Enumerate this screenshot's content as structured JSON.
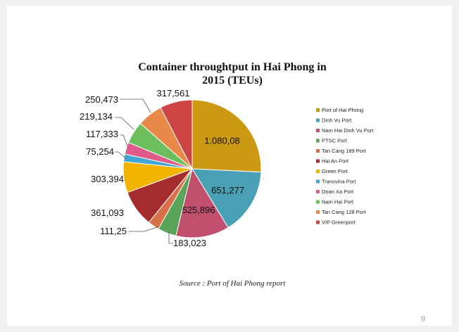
{
  "slide": {
    "page_number": "9"
  },
  "chart_data": {
    "type": "pie",
    "title": "Container throughtput in Hai Phong in 2015 (TEUs)",
    "title_lines": [
      "Container throughtput in Hai Phong in",
      "2015 (TEUs)"
    ],
    "source": "Source : Port of Hai Phong report",
    "legend_position": "right",
    "slices": [
      {
        "name": "Port of Hai Phong",
        "value": 1080.08,
        "label": "1.080,08",
        "color": "#cc9a12",
        "label_inside": true
      },
      {
        "name": "Dinh Vu Port",
        "value": 651.277,
        "label": "651,277",
        "color": "#4aa0b5",
        "label_inside": true
      },
      {
        "name": "Nam Hai Dinh Vu Port",
        "value": 525.896,
        "label": "525,896",
        "color": "#c0506e",
        "label_inside": true
      },
      {
        "name": "PTSC Port",
        "value": 183.023,
        "label": "183,023",
        "color": "#5aa35a",
        "label_inside": false
      },
      {
        "name": "Tan Cang 189 Port",
        "value": 111.25,
        "label": "111,25",
        "color": "#d9704a",
        "label_inside": false
      },
      {
        "name": "Hai An Port",
        "value": 361.093,
        "label": "361,093",
        "color": "#a62d2d",
        "label_inside": false
      },
      {
        "name": "Green Port",
        "value": 303.394,
        "label": "303,394",
        "color": "#f2b400",
        "label_inside": false
      },
      {
        "name": "Transvina Port",
        "value": 75.254,
        "label": "75,254",
        "color": "#3fa6d6",
        "label_inside": false
      },
      {
        "name": "Doan Xa Port",
        "value": 117.333,
        "label": "117,333",
        "color": "#e05a8a",
        "label_inside": false
      },
      {
        "name": "Nam Hai Port",
        "value": 219.134,
        "label": "219,134",
        "color": "#6cbf5c",
        "label_inside": false
      },
      {
        "name": "Tan Cang 128 Port",
        "value": 250.473,
        "label": "250,473",
        "color": "#e8894a",
        "label_inside": false
      },
      {
        "name": "VIP Greenport",
        "value": 317.561,
        "label": "317,561",
        "color": "#cc4444",
        "label_inside": false
      }
    ]
  }
}
